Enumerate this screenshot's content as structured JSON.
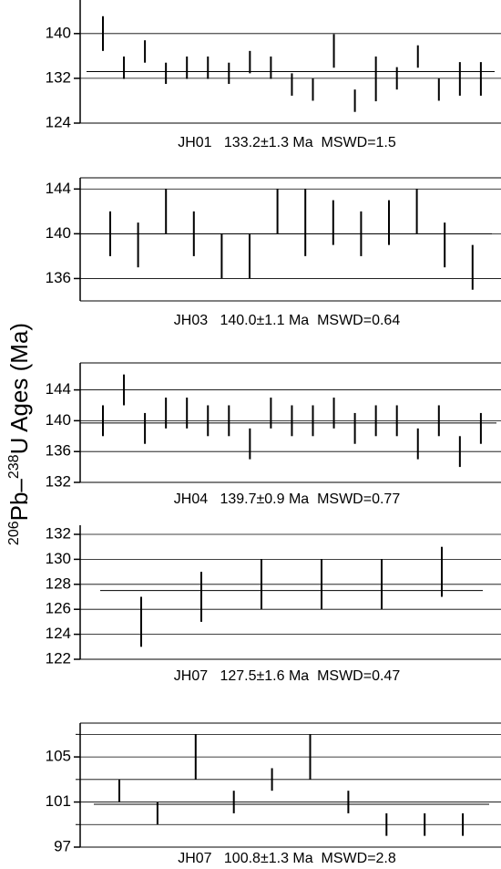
{
  "ylabel": {
    "sup1": "206",
    "text1": "Pb–",
    "sup2": "238",
    "text2": "U  Ages (Ma)"
  },
  "chart_data": [
    {
      "type": "errorbar",
      "caption": "JH01   133.2±1.3 Ma  MSWD=1.5",
      "mean": 133.2,
      "values": [
        140,
        133.9,
        136.8,
        132.9,
        133.9,
        133.9,
        132.9,
        134.9,
        133.9,
        130.9,
        130,
        136.9,
        128,
        131.9,
        132,
        135.9,
        130,
        131.9,
        131.9
      ],
      "errors": [
        3.1,
        2,
        2,
        1.9,
        2,
        2,
        1.9,
        2,
        2,
        2,
        2,
        3,
        2,
        4,
        2,
        2,
        2,
        3,
        3
      ],
      "ylim": [
        124,
        146
      ],
      "yticks": [
        124,
        132,
        140
      ],
      "grid": [
        132,
        140
      ]
    },
    {
      "type": "errorbar",
      "caption": "JH03   140.0±1.1 Ma  MSWD=0.64",
      "mean": 140.0,
      "values": [
        140,
        139,
        142,
        140,
        138,
        138,
        142,
        141,
        141,
        140,
        141,
        142,
        139,
        137
      ],
      "errors": [
        2,
        2,
        2,
        2,
        2,
        2,
        2,
        3,
        2,
        2,
        2,
        2,
        2,
        2
      ],
      "ylim": [
        134,
        145
      ],
      "yticks": [
        136,
        140,
        144
      ],
      "grid": [
        136,
        140,
        144
      ]
    },
    {
      "type": "errorbar",
      "caption": "JH04   139.7±0.9 Ma  MSWD=0.77",
      "mean": 139.7,
      "values": [
        140,
        144,
        139,
        141,
        141,
        140,
        140,
        137,
        141,
        140,
        140,
        141,
        139,
        140,
        140,
        137,
        140,
        136,
        139
      ],
      "errors": [
        2,
        2,
        2,
        2,
        2,
        2,
        2,
        2,
        2,
        2,
        2,
        2,
        2,
        2,
        2,
        2,
        2,
        2,
        2
      ],
      "ylim": [
        132,
        147.5
      ],
      "yticks": [
        132,
        136,
        140,
        144
      ],
      "grid": [
        136,
        140,
        144
      ]
    },
    {
      "type": "errorbar",
      "caption": "JH07   127.5±1.6 Ma  MSWD=0.47",
      "mean": 127.5,
      "values": [
        125,
        127,
        128,
        128,
        128,
        129
      ],
      "errors": [
        2,
        2,
        2,
        2,
        2,
        2
      ],
      "ylim": [
        122,
        132
      ],
      "yticks": [
        122,
        124,
        126,
        128,
        130,
        132
      ],
      "grid": [
        124,
        126,
        128,
        130,
        132
      ]
    },
    {
      "type": "errorbar",
      "caption": "JH07   100.8±1.3 Ma  MSWD=2.8",
      "mean": 100.8,
      "values": [
        102,
        100,
        105,
        101,
        103,
        105,
        101,
        99,
        99,
        99
      ],
      "errors": [
        1,
        1,
        2,
        1,
        1,
        2,
        1,
        1,
        1,
        1
      ],
      "ylim": [
        97,
        108
      ],
      "yticks": [
        97,
        101,
        105
      ],
      "grid": [
        99,
        101,
        103,
        105,
        107
      ]
    }
  ]
}
